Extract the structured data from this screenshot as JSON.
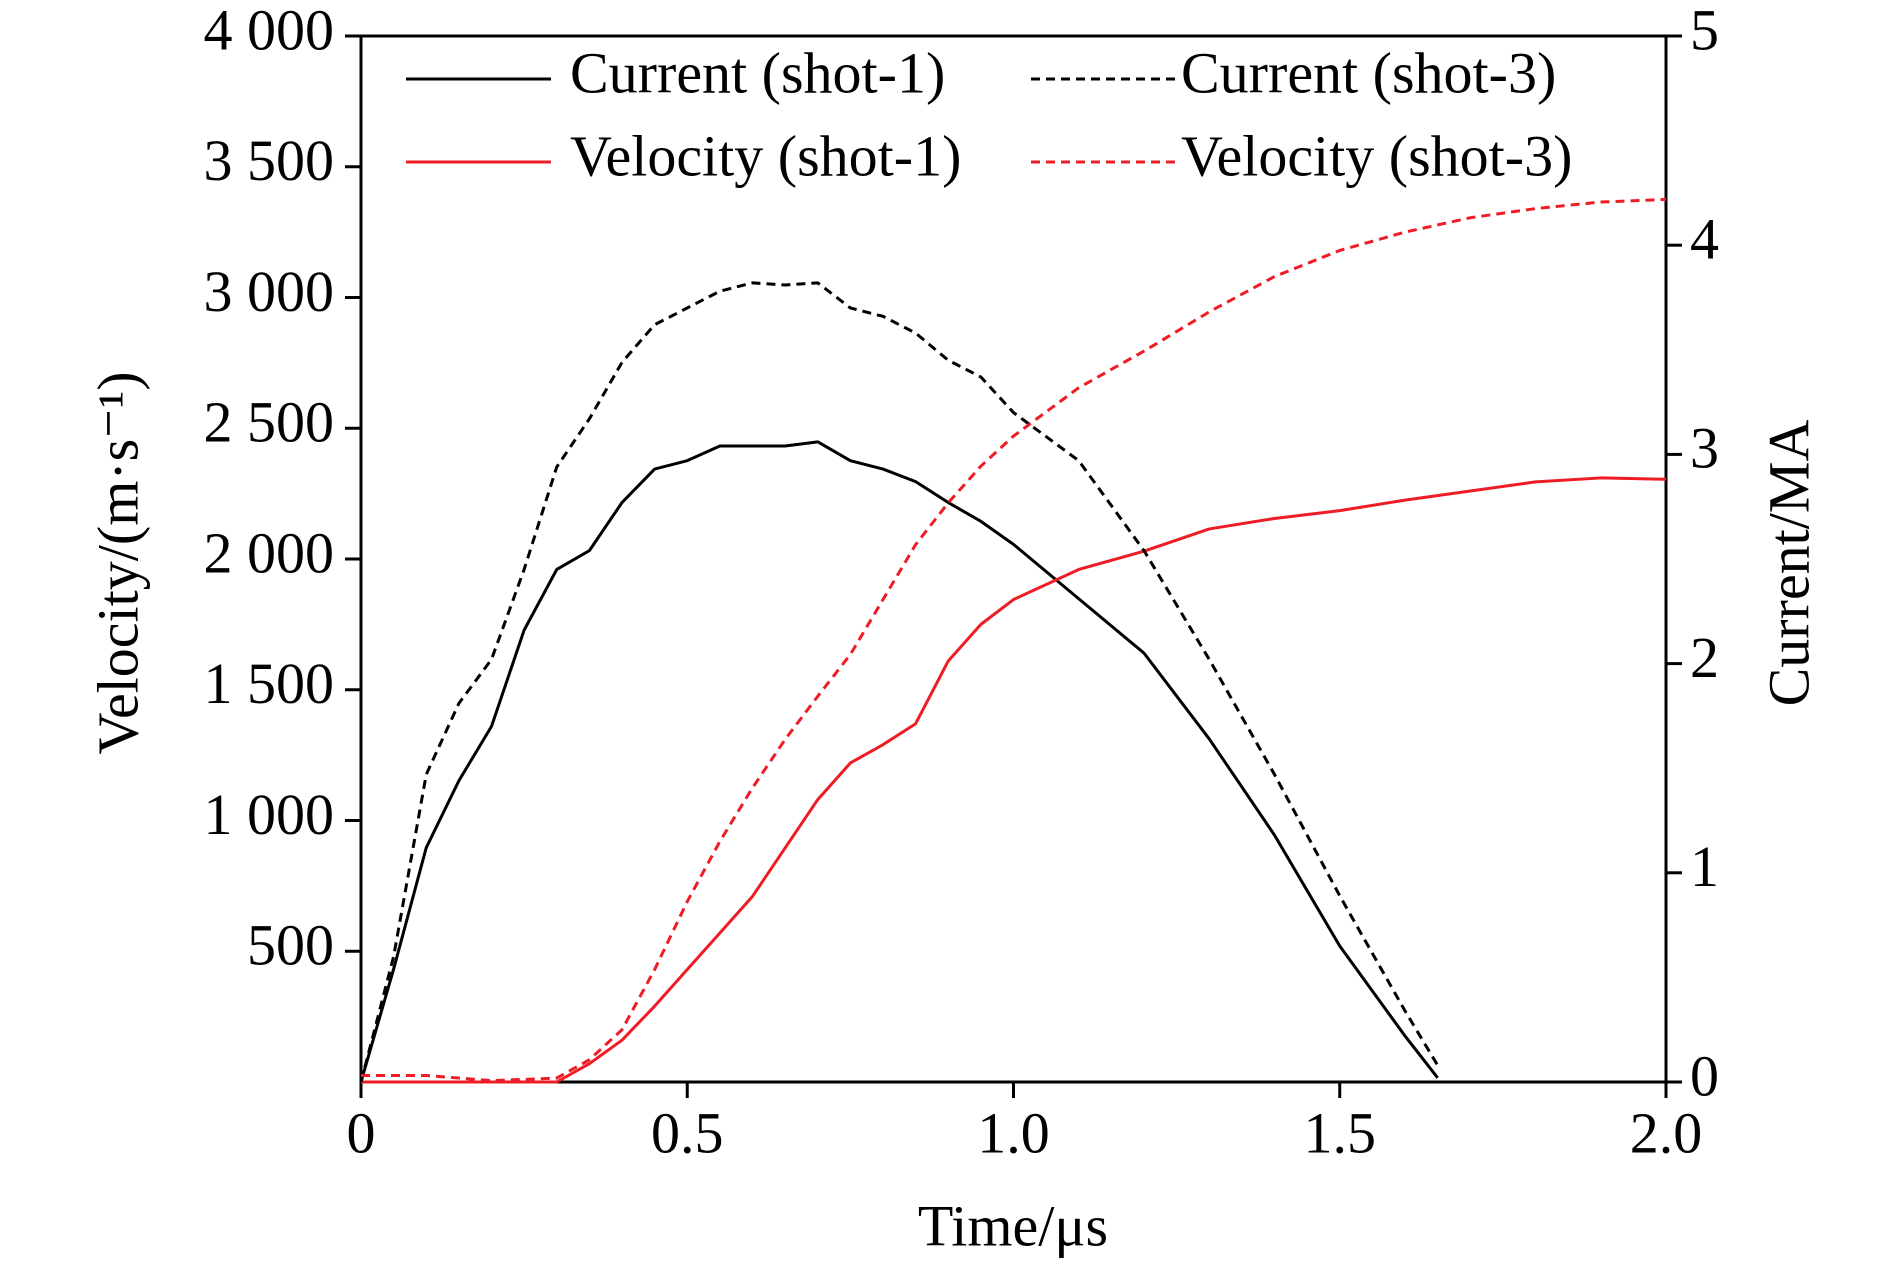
{
  "chart_data": {
    "type": "line",
    "xlabel": "Time/μs",
    "ylabel": "Velocity/(m·s⁻¹)",
    "y2label": "Current/MA",
    "xlim": [
      0,
      2.0
    ],
    "xticks": [
      0,
      0.5,
      {
        "value": 1.0,
        "label": "1.0"
      },
      1.5,
      {
        "value": 2.0,
        "label": "2.0"
      }
    ],
    "ylim": [
      0,
      4000
    ],
    "yticks": [
      500,
      {
        "value": 1000,
        "label": "1 000"
      },
      {
        "value": 1500,
        "label": "1 500"
      },
      {
        "value": 2000,
        "label": "2 000"
      },
      {
        "value": 2500,
        "label": "2 500"
      },
      {
        "value": 3000,
        "label": "3 000"
      },
      {
        "value": 3500,
        "label": "3 500"
      },
      {
        "value": 4000,
        "label": "4 000"
      }
    ],
    "y2lim": [
      0,
      5
    ],
    "y2ticks": [
      0,
      1,
      2,
      3,
      4,
      5
    ],
    "legend": "upper left",
    "series": [
      {
        "name": "Current (shot-1)",
        "color": "#000000",
        "style": "solid",
        "axis": "y2",
        "x": [
          0,
          0.05,
          0.1,
          0.15,
          0.2,
          0.25,
          0.3,
          0.35,
          0.4,
          0.45,
          0.5,
          0.55,
          0.6,
          0.65,
          0.7,
          0.75,
          0.8,
          0.85,
          0.9,
          0.95,
          1.0,
          1.1,
          1.2,
          1.3,
          1.4,
          1.5,
          1.6,
          1.65
        ],
        "values": [
          0,
          0.54,
          1.12,
          1.44,
          1.7,
          2.16,
          2.45,
          2.54,
          2.77,
          2.93,
          2.97,
          3.04,
          3.04,
          3.04,
          3.06,
          2.97,
          2.93,
          2.87,
          2.77,
          2.68,
          2.57,
          2.31,
          2.05,
          1.64,
          1.18,
          0.65,
          0.22,
          0.02
        ]
      },
      {
        "name": "Velocity (shot-1)",
        "color": "#ee1c25",
        "style": "solid",
        "x": [
          0,
          0.2,
          0.3,
          0.35,
          0.4,
          0.45,
          0.5,
          0.55,
          0.6,
          0.65,
          0.7,
          0.75,
          0.8,
          0.85,
          0.9,
          0.95,
          1.0,
          1.1,
          1.2,
          1.3,
          1.4,
          1.5,
          1.6,
          1.7,
          1.8,
          1.9,
          2.0
        ],
        "values": [
          0,
          0,
          0,
          70,
          160,
          290,
          430,
          570,
          710,
          895,
          1080,
          1220,
          1290,
          1370,
          1610,
          1750,
          1845,
          1960,
          2030,
          2115,
          2155,
          2185,
          2225,
          2260,
          2295,
          2310,
          2305
        ]
      },
      {
        "name": "Current (shot-3)",
        "color": "#000000",
        "style": "dashed",
        "axis": "y2",
        "x": [
          0,
          0.05,
          0.1,
          0.15,
          0.2,
          0.25,
          0.3,
          0.35,
          0.4,
          0.45,
          0.5,
          0.55,
          0.6,
          0.65,
          0.7,
          0.75,
          0.8,
          0.85,
          0.9,
          0.95,
          1.0,
          1.1,
          1.2,
          1.3,
          1.4,
          1.5,
          1.6,
          1.65
        ],
        "values": [
          0,
          0.6,
          1.47,
          1.81,
          2.02,
          2.45,
          2.94,
          3.17,
          3.44,
          3.62,
          3.7,
          3.78,
          3.82,
          3.81,
          3.82,
          3.7,
          3.66,
          3.58,
          3.45,
          3.37,
          3.2,
          2.97,
          2.54,
          2.02,
          1.47,
          0.89,
          0.34,
          0.08
        ]
      },
      {
        "name": "Velocity (shot-3)",
        "color": "#ee1c25",
        "style": "dashed",
        "x": [
          0,
          0.1,
          0.2,
          0.3,
          0.35,
          0.4,
          0.45,
          0.5,
          0.55,
          0.6,
          0.65,
          0.7,
          0.75,
          0.8,
          0.85,
          0.9,
          0.95,
          1.0,
          1.1,
          1.2,
          1.3,
          1.4,
          1.5,
          1.6,
          1.7,
          1.8,
          1.9,
          2.0
        ],
        "values": [
          25,
          25,
          5,
          15,
          85,
          200,
          430,
          690,
          920,
          1125,
          1310,
          1475,
          1635,
          1845,
          2055,
          2215,
          2355,
          2470,
          2655,
          2795,
          2945,
          3080,
          3180,
          3250,
          3305,
          3340,
          3365,
          3375
        ]
      }
    ]
  }
}
